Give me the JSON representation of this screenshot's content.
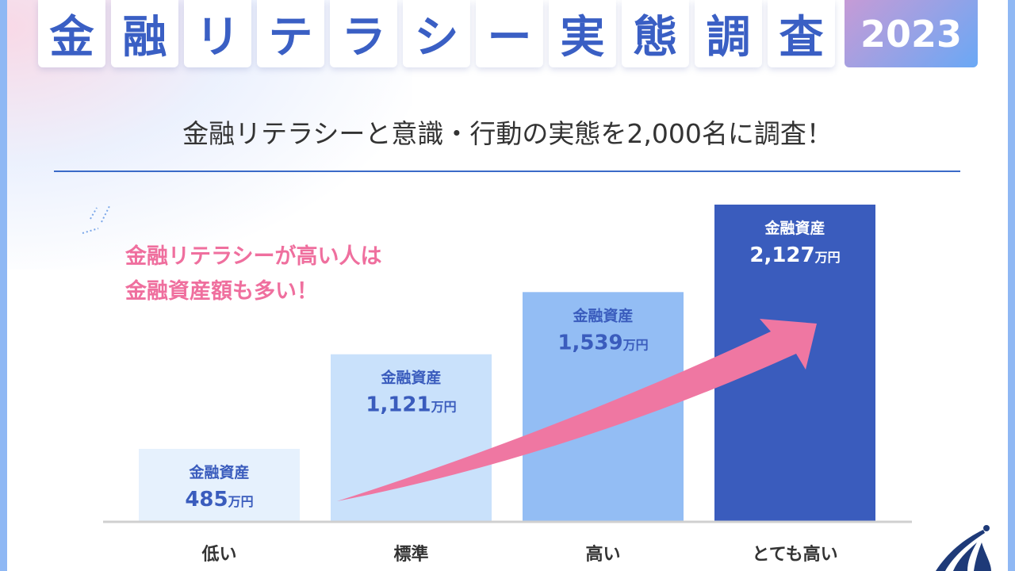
{
  "header": {
    "title_chars": [
      "金",
      "融",
      "リ",
      "テ",
      "ラ",
      "シ",
      "ー",
      "実",
      "態",
      "調",
      "査"
    ],
    "year": "2023"
  },
  "subtitle": "金融リテラシーと意識・行動の実態を2,000名に調査！",
  "annotation": {
    "line1": "金融リテラシーが高い人は",
    "line2": "金融資産額も多い！"
  },
  "colors": {
    "accent": "#3a5fc4",
    "pink": "#ef6f9e",
    "bars": [
      "#e6f1fd",
      "#c9e1fb",
      "#93bdf4",
      "#3a5cbd"
    ]
  },
  "chart_data": {
    "type": "bar",
    "title": "",
    "categories": [
      "低い",
      "標準",
      "高い",
      "とても高い"
    ],
    "values": [
      485,
      1121,
      1539,
      2127
    ],
    "value_label": "金融資産",
    "unit": "万円",
    "data_labels": [
      "485",
      "1,121",
      "1,539",
      "2,127"
    ],
    "trend_arrow": "increasing",
    "grid": false
  }
}
